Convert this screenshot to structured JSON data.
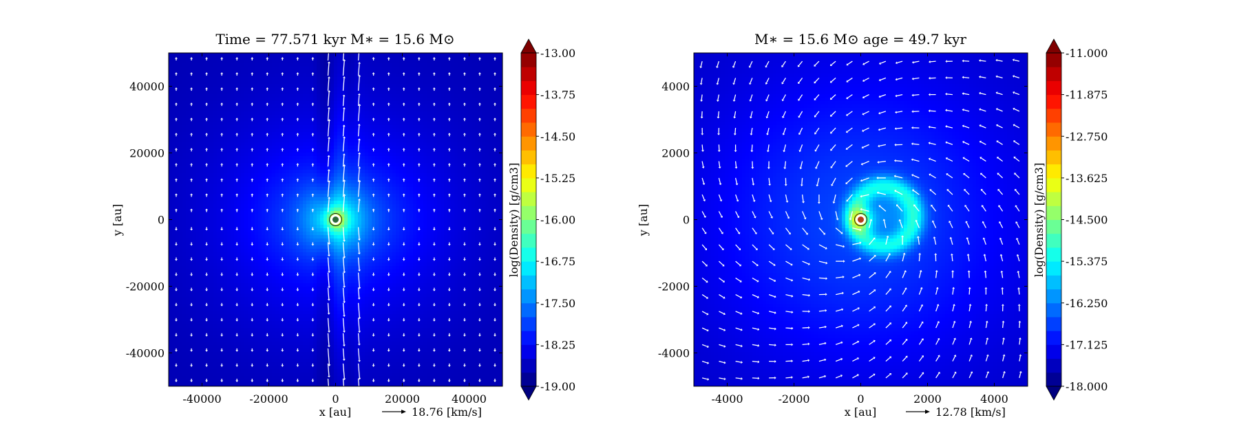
{
  "chart_data": [
    {
      "type": "heatmap",
      "title": "Time = 77.571 kyr    M∗ = 15.6 M⊙",
      "xlabel": "x [au]",
      "ylabel": "y [au]",
      "xlim": [
        -50000,
        50000
      ],
      "ylim": [
        -50000,
        50000
      ],
      "xticks": [
        -40000,
        -20000,
        0,
        20000,
        40000
      ],
      "yticks": [
        -40000,
        -20000,
        0,
        20000,
        40000
      ],
      "xtick_labels": [
        "-40000",
        "-20000",
        "0",
        "20000",
        "40000"
      ],
      "ytick_labels": [
        "-40000",
        "-20000",
        "0",
        "20000",
        "40000"
      ],
      "velocity_key": "18.76 [km/s]",
      "colorbar": {
        "label": "log(Density) [g/cm3]",
        "min": -19.0,
        "max": -13.0,
        "ticks": [
          -19.0,
          -18.25,
          -17.5,
          -16.75,
          -16.0,
          -15.25,
          -14.5,
          -13.75,
          -13.0
        ],
        "tick_labels": [
          "-19.00",
          "-18.25",
          "-17.50",
          "-16.75",
          "-16.00",
          "-15.25",
          "-14.50",
          "-13.75",
          "-13.00"
        ]
      },
      "field": {
        "background": -18.7,
        "components": [
          {
            "kind": "gauss",
            "x": 0,
            "y": 0,
            "sx": 28000,
            "sy": 26000,
            "amp": 0.55
          },
          {
            "kind": "gauss",
            "x": 0,
            "y": 0,
            "sx": 15000,
            "sy": 11000,
            "amp": 0.45
          },
          {
            "kind": "gauss",
            "x": 2500,
            "y": 0,
            "sx": 3000,
            "sy": 30000,
            "amp": 0.35
          },
          {
            "kind": "gauss",
            "x": 0,
            "y": 0,
            "sx": 6500,
            "sy": 6000,
            "amp": 0.9
          },
          {
            "kind": "gauss",
            "x": 0,
            "y": 0,
            "sx": 2500,
            "sy": 2300,
            "amp": 1.1
          },
          {
            "kind": "gauss",
            "x": 0,
            "y": 0,
            "sx": 900,
            "sy": 900,
            "amp": 0.8
          },
          {
            "kind": "strip",
            "x": -3000,
            "y": 0,
            "w": 1800,
            "sy": 70000,
            "amp": -0.25
          },
          {
            "kind": "strip",
            "x": 4000,
            "y": 0,
            "w": 1500,
            "sy": 70000,
            "amp": -0.2
          }
        ]
      },
      "vectors": {
        "pattern": "bipolar",
        "grid": 22,
        "jet_x": [
          -3000,
          2000,
          6500
        ],
        "scale": 18.76
      },
      "sink": {
        "x": 0,
        "y": 0,
        "fill": "#2a6a3a"
      }
    },
    {
      "type": "heatmap",
      "title": "M∗ = 15.6 M⊙          age = 49.7 kyr",
      "xlabel": "x [au]",
      "ylabel": "y [au]",
      "xlim": [
        -5000,
        5000
      ],
      "ylim": [
        -5000,
        5000
      ],
      "xticks": [
        -4000,
        -2000,
        0,
        2000,
        4000
      ],
      "yticks": [
        -4000,
        -2000,
        0,
        2000,
        4000
      ],
      "xtick_labels": [
        "-4000",
        "-2000",
        "0",
        "2000",
        "4000"
      ],
      "ytick_labels": [
        "-4000",
        "-2000",
        "0",
        "2000",
        "4000"
      ],
      "velocity_key": "12.78 [km/s]",
      "colorbar": {
        "label": "log(Density) [g/cm3]",
        "min": -18.0,
        "max": -11.0,
        "ticks": [
          -18.0,
          -17.125,
          -16.25,
          -15.375,
          -14.5,
          -13.625,
          -12.75,
          -11.875,
          -11.0
        ],
        "tick_labels": [
          "-18.000",
          "-17.125",
          "-16.250",
          "-15.375",
          "-14.500",
          "-13.625",
          "-12.750",
          "-11.875",
          "-11.000"
        ]
      },
      "field": {
        "background": -17.6,
        "components": [
          {
            "kind": "gauss",
            "x": 0,
            "y": 0,
            "sx": 4200,
            "sy": 4000,
            "amp": 0.55
          },
          {
            "kind": "gauss",
            "x": 0,
            "y": 0,
            "sx": 2600,
            "sy": 2500,
            "amp": 0.4
          },
          {
            "kind": "ring",
            "x": 700,
            "y": 100,
            "r": 900,
            "w": 230,
            "amp": 1.35
          },
          {
            "kind": "gauss",
            "x": 1000,
            "y": 150,
            "sx": 600,
            "sy": 550,
            "amp": 0.5
          },
          {
            "kind": "gauss",
            "x": 0,
            "y": 0,
            "sx": 280,
            "sy": 280,
            "amp": 1.6
          },
          {
            "kind": "gauss",
            "x": 0,
            "y": 0,
            "sx": 90,
            "sy": 90,
            "amp": 1.4
          }
        ]
      },
      "vectors": {
        "pattern": "rotating",
        "grid": 20,
        "scale": 12.78
      },
      "sink": {
        "x": 0,
        "y": 0,
        "fill": "#b23a1a"
      }
    }
  ]
}
